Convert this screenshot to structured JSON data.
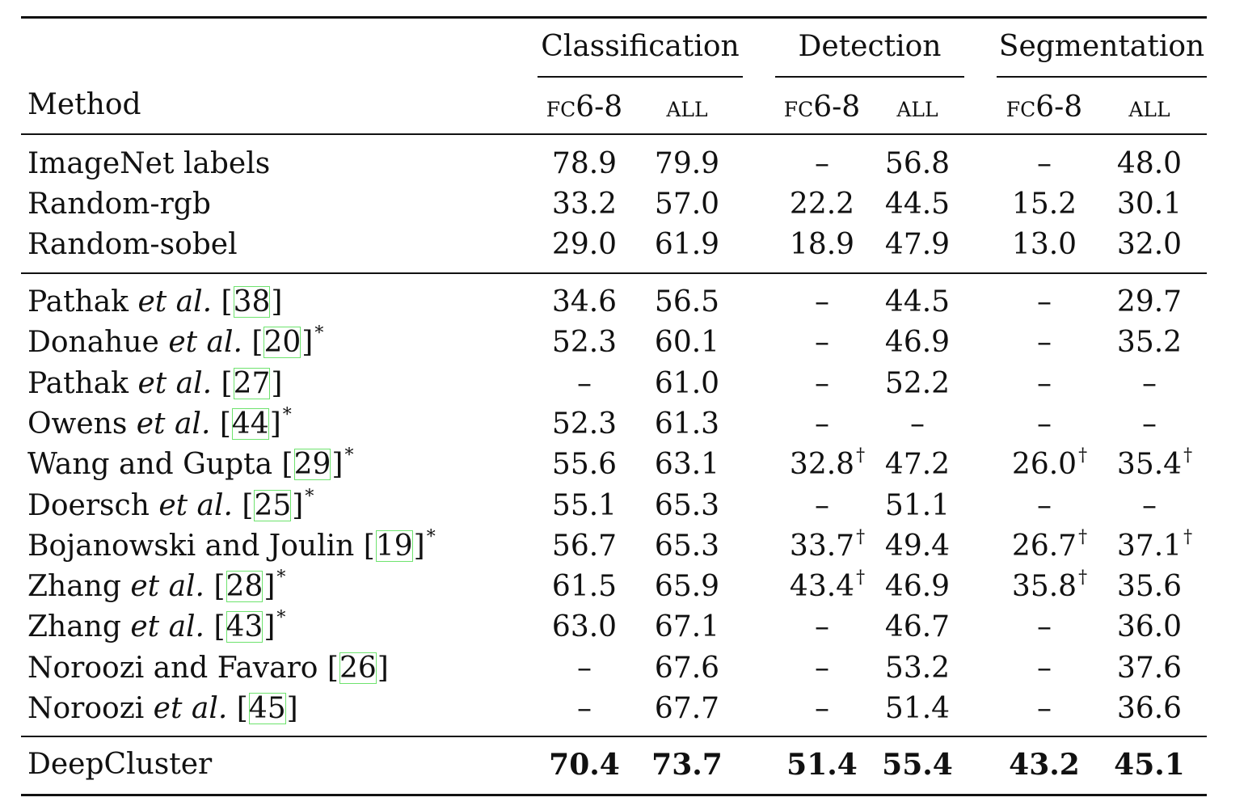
{
  "header": {
    "method": "Method",
    "groups": [
      "Classification",
      "Detection",
      "Segmentation"
    ],
    "subheaders": [
      "fc6-8",
      "all",
      "fc6-8",
      "all",
      "fc6-8",
      "all"
    ]
  },
  "baseline_rows": [
    {
      "method": "ImageNet labels",
      "values": [
        "78.9",
        "79.9",
        "–",
        "56.8",
        "–",
        "48.0"
      ]
    },
    {
      "method": "Random-rgb",
      "values": [
        "33.2",
        "57.0",
        "22.2",
        "44.5",
        "15.2",
        "30.1"
      ]
    },
    {
      "method": "Random-sobel",
      "values": [
        "29.0",
        "61.9",
        "18.9",
        "47.9",
        "13.0",
        "32.0"
      ]
    }
  ],
  "prior_rows": [
    {
      "name": "Pathak",
      "etal": "et al.",
      "ref": "38",
      "star": "",
      "values": [
        "34.6",
        "56.5",
        "–",
        "44.5",
        "–",
        "29.7"
      ],
      "daggers": [
        false,
        false,
        false,
        false,
        false,
        false
      ]
    },
    {
      "name": "Donahue",
      "etal": "et al.",
      "ref": "20",
      "star": "*",
      "values": [
        "52.3",
        "60.1",
        "–",
        "46.9",
        "–",
        "35.2"
      ],
      "daggers": [
        false,
        false,
        false,
        false,
        false,
        false
      ]
    },
    {
      "name": "Pathak",
      "etal": "et al.",
      "ref": "27",
      "star": "",
      "values": [
        "–",
        "61.0",
        "–",
        "52.2",
        "–",
        "–"
      ],
      "daggers": [
        false,
        false,
        false,
        false,
        false,
        false
      ]
    },
    {
      "name": "Owens",
      "etal": "et al.",
      "ref": "44",
      "star": "*",
      "values": [
        "52.3",
        "61.3",
        "–",
        "–",
        "–",
        "–"
      ],
      "daggers": [
        false,
        false,
        false,
        false,
        false,
        false
      ]
    },
    {
      "name": "Wang and Gupta",
      "etal": "",
      "ref": "29",
      "star": "*",
      "values": [
        "55.6",
        "63.1",
        "32.8",
        "47.2",
        "26.0",
        "35.4"
      ],
      "daggers": [
        false,
        false,
        true,
        false,
        true,
        true
      ]
    },
    {
      "name": "Doersch",
      "etal": "et al.",
      "ref": "25",
      "star": "*",
      "values": [
        "55.1",
        "65.3",
        "–",
        "51.1",
        "–",
        "–"
      ],
      "daggers": [
        false,
        false,
        false,
        false,
        false,
        false
      ]
    },
    {
      "name": "Bojanowski and Joulin",
      "etal": "",
      "ref": "19",
      "star": "*",
      "values": [
        "56.7",
        "65.3",
        "33.7",
        "49.4",
        "26.7",
        "37.1"
      ],
      "daggers": [
        false,
        false,
        true,
        false,
        true,
        true
      ]
    },
    {
      "name": "Zhang",
      "etal": "et al.",
      "ref": "28",
      "star": "*",
      "values": [
        "61.5",
        "65.9",
        "43.4",
        "46.9",
        "35.8",
        "35.6"
      ],
      "daggers": [
        false,
        false,
        true,
        false,
        true,
        false
      ]
    },
    {
      "name": "Zhang",
      "etal": "et al.",
      "ref": "43",
      "star": "*",
      "values": [
        "63.0",
        "67.1",
        "–",
        "46.7",
        "–",
        "36.0"
      ],
      "daggers": [
        false,
        false,
        false,
        false,
        false,
        false
      ]
    },
    {
      "name": "Noroozi and Favaro",
      "etal": "",
      "ref": "26",
      "star": "",
      "values": [
        "–",
        "67.6",
        "–",
        "53.2",
        "–",
        "37.6"
      ],
      "daggers": [
        false,
        false,
        false,
        false,
        false,
        false
      ]
    },
    {
      "name": "Noroozi",
      "etal": "et al.",
      "ref": "45",
      "star": "",
      "values": [
        "–",
        "67.7",
        "–",
        "51.4",
        "–",
        "36.6"
      ],
      "daggers": [
        false,
        false,
        false,
        false,
        false,
        false
      ]
    }
  ],
  "final_row": {
    "method": "DeepCluster",
    "values": [
      "70.4",
      "73.7",
      "51.4",
      "55.4",
      "43.2",
      "45.1"
    ]
  },
  "dagger_symbol": "†"
}
